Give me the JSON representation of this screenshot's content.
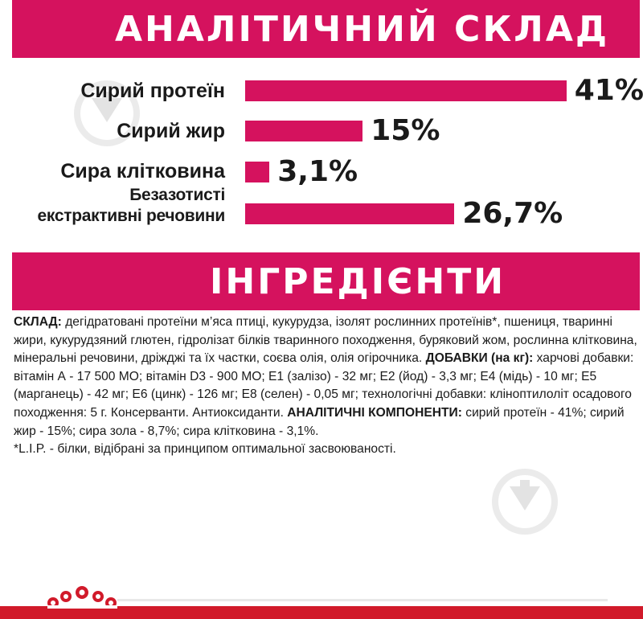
{
  "analytical": {
    "title": "АНАЛІТИЧНИЙ СКЛАД",
    "rows": [
      {
        "label": "Сирий протеїн",
        "value": "41%",
        "percent": 41
      },
      {
        "label": "Сирий жир",
        "value": "15%",
        "percent": 15
      },
      {
        "label": "Сира клітковина",
        "value": "3,1%",
        "percent": 3.1
      },
      {
        "label_line1": "Безазотисті",
        "label_line2": "екстрактивні речовини",
        "value": "26,7%",
        "percent": 26.7
      }
    ],
    "bar_color": "#d5125e"
  },
  "ingredients": {
    "title": "ІНГРЕДІЄНТИ",
    "composition_label": "СКЛАД:",
    "composition_text": " дегідратовані протеїни м’яса птиці, кукурудза, ізолят рослинних протеїнів*, пшениця, тваринні жири, кукурудзяний глютен, гідролізат білків тваринного походження, буряковий жом, рослинна клітковина, мінеральні речовини, дріжджі та їх частки, соєва олія, олія огірочника.",
    "additives_label": "ДОБАВКИ (на кг):",
    "additives_text": " харчові добавки: вітамін А - 17 500 МО; вітамін D3 - 900 МО; Е1 (залізо) - 32 мг; Е2 (йод) - 3,3 мг; Е4 (мідь) - 10 мг; Е5 (марганець) - 42 мг; Е6 (цинк) - 126 мг; Е8 (селен) - 0,05 мг; технологічні добавки: клінoптилоліт осадового походження: 5 г. Консерванти. Антиоксиданти.",
    "components_label": "АНАЛІТИЧНІ КОМПОНЕНТИ:",
    "components_text": " сирий протеїн - 41%; сирий жир - 15%; сира зола - 8,7%; сира клітковина - 3,1%.",
    "footnote": "*L.I.P. - білки, відібрані за принципом оптимальної засвоюваності."
  },
  "colors": {
    "brand_pink": "#d5125e",
    "royal_canin_red": "#d11a2a"
  },
  "icons": [
    "royal-canin-crown-logo",
    "watermark-icon"
  ]
}
